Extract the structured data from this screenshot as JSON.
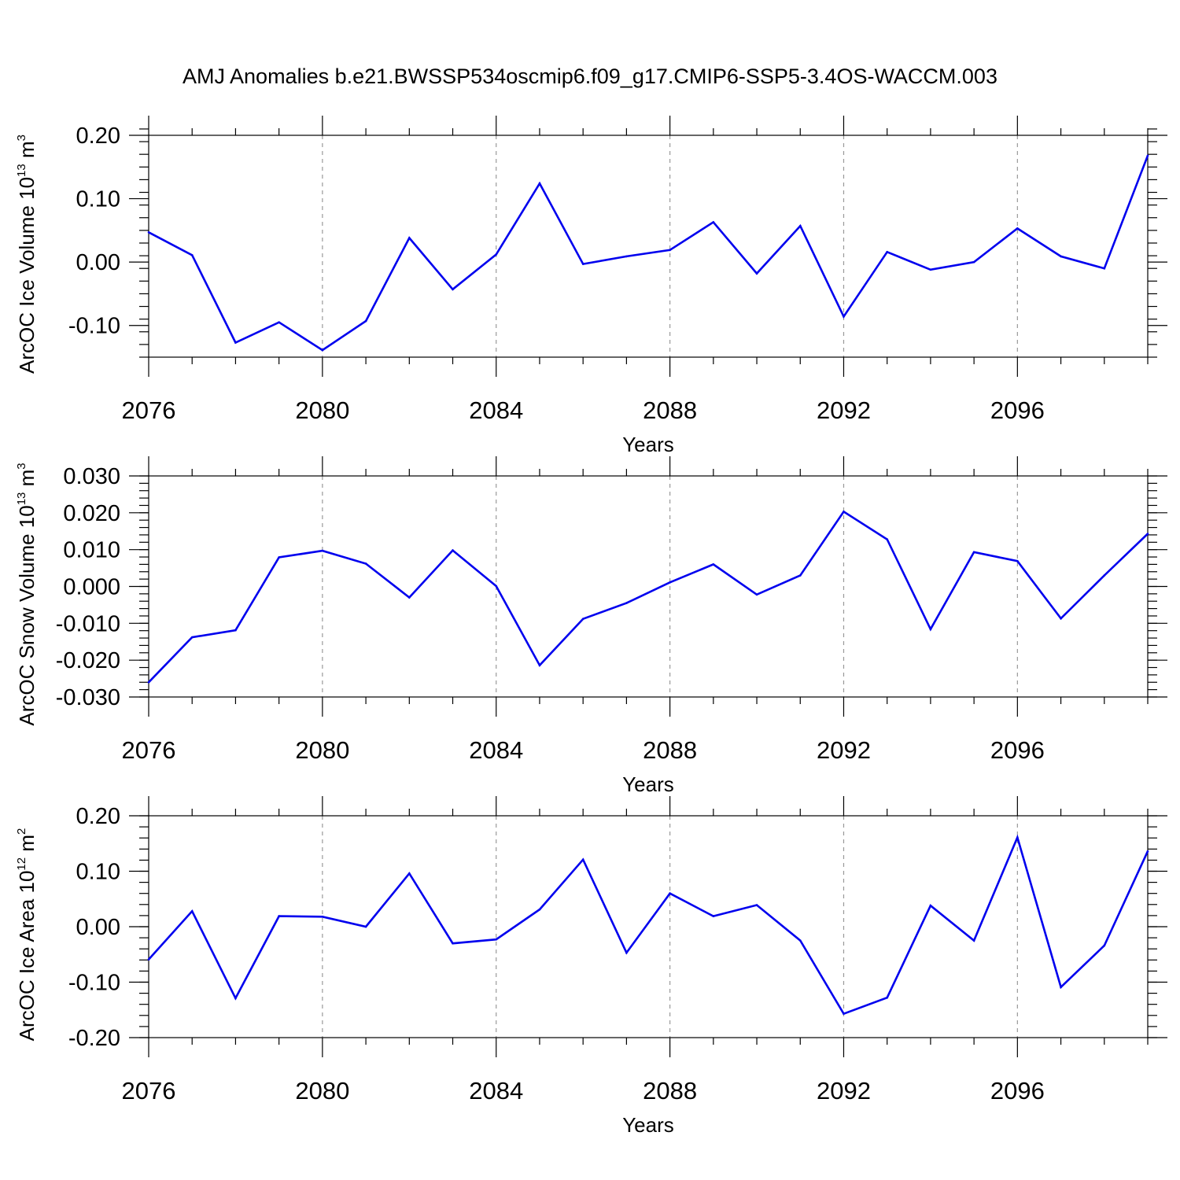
{
  "title": "AMJ Anomalies b.e21.BWSSP534oscmip6.f09_g17.CMIP6-SSP5-3.4OS-WACCM.003",
  "chart_data": [
    {
      "type": "line",
      "title": "AMJ Anomalies b.e21.BWSSP534oscmip6.f09_g17.CMIP6-SSP5-3.4OS-WACCM.003",
      "xlabel": "Years",
      "ylabel": "ArcOC Ice Volume 10",
      "ylabel_exp": "13",
      "ylabel_unit": " m",
      "ylabel_unit_exp": "3",
      "xlim": [
        2076,
        2099
      ],
      "ylim": [
        -0.15,
        0.2
      ],
      "x_ticks": [
        2076,
        2080,
        2084,
        2088,
        2092,
        2096
      ],
      "x_tick_labels": [
        "2076",
        "2080",
        "2084",
        "2088",
        "2092",
        "2096"
      ],
      "y_ticks": [
        0.2,
        0.1,
        0.0,
        -0.1
      ],
      "y_tick_labels": [
        "0.20",
        "0.10",
        "0.00",
        "-0.10"
      ],
      "y_minor_step": 0.02,
      "grid_x": true,
      "line_color": "#0000ee",
      "x": [
        2076,
        2077,
        2078,
        2079,
        2080,
        2081,
        2082,
        2083,
        2084,
        2085,
        2086,
        2087,
        2088,
        2089,
        2090,
        2091,
        2092,
        2093,
        2094,
        2095,
        2096,
        2097,
        2098,
        2099
      ],
      "values": [
        0.047,
        0.011,
        -0.127,
        -0.095,
        -0.139,
        -0.093,
        0.038,
        -0.043,
        0.012,
        0.124,
        -0.003,
        0.009,
        0.019,
        0.063,
        -0.018,
        0.057,
        -0.086,
        0.016,
        -0.012,
        0.0,
        0.053,
        0.009,
        -0.01,
        0.168
      ]
    },
    {
      "type": "line",
      "xlabel": "Years",
      "ylabel": "ArcOC Snow Volume 10",
      "ylabel_exp": "13",
      "ylabel_unit": " m",
      "ylabel_unit_exp": "3",
      "xlim": [
        2076,
        2099
      ],
      "ylim": [
        -0.03,
        0.03
      ],
      "x_ticks": [
        2076,
        2080,
        2084,
        2088,
        2092,
        2096
      ],
      "x_tick_labels": [
        "2076",
        "2080",
        "2084",
        "2088",
        "2092",
        "2096"
      ],
      "y_ticks": [
        0.03,
        0.02,
        0.01,
        0.0,
        -0.01,
        -0.02,
        -0.03
      ],
      "y_tick_labels": [
        "0.030",
        "0.020",
        "0.010",
        "0.000",
        "-0.010",
        "-0.020",
        "-0.030"
      ],
      "y_minor_step": 0.002,
      "grid_x": true,
      "line_color": "#0000ee",
      "x": [
        2076,
        2077,
        2078,
        2079,
        2080,
        2081,
        2082,
        2083,
        2084,
        2085,
        2086,
        2087,
        2088,
        2089,
        2090,
        2091,
        2092,
        2093,
        2094,
        2095,
        2096,
        2097,
        2098,
        2099
      ],
      "values": [
        -0.026,
        -0.0138,
        -0.0119,
        0.0079,
        0.0097,
        0.0062,
        -0.003,
        0.0098,
        0.0001,
        -0.0214,
        -0.0088,
        -0.0045,
        0.0011,
        0.006,
        -0.0022,
        0.003,
        0.0203,
        0.0128,
        -0.0116,
        0.0093,
        0.0069,
        -0.0087,
        0.003,
        0.0143
      ]
    },
    {
      "type": "line",
      "xlabel": "Years",
      "ylabel": "ArcOC Ice Area 10",
      "ylabel_exp": "12",
      "ylabel_unit": " m",
      "ylabel_unit_exp": "2",
      "xlim": [
        2076,
        2099
      ],
      "ylim": [
        -0.2,
        0.2
      ],
      "x_ticks": [
        2076,
        2080,
        2084,
        2088,
        2092,
        2096
      ],
      "x_tick_labels": [
        "2076",
        "2080",
        "2084",
        "2088",
        "2092",
        "2096"
      ],
      "y_ticks": [
        0.2,
        0.1,
        0.0,
        -0.1,
        -0.2
      ],
      "y_tick_labels": [
        "0.20",
        "0.10",
        "0.00",
        "-0.10",
        "-0.20"
      ],
      "y_minor_step": 0.02,
      "grid_x": true,
      "line_color": "#0000ee",
      "x": [
        2076,
        2077,
        2078,
        2079,
        2080,
        2081,
        2082,
        2083,
        2084,
        2085,
        2086,
        2087,
        2088,
        2089,
        2090,
        2091,
        2092,
        2093,
        2094,
        2095,
        2096,
        2097,
        2098,
        2099
      ],
      "values": [
        -0.059,
        0.028,
        -0.129,
        0.019,
        0.018,
        0.0,
        0.096,
        -0.03,
        -0.023,
        0.031,
        0.121,
        -0.047,
        0.06,
        0.019,
        0.039,
        -0.025,
        -0.157,
        -0.128,
        0.038,
        -0.025,
        0.161,
        -0.109,
        -0.034,
        0.136
      ]
    }
  ]
}
